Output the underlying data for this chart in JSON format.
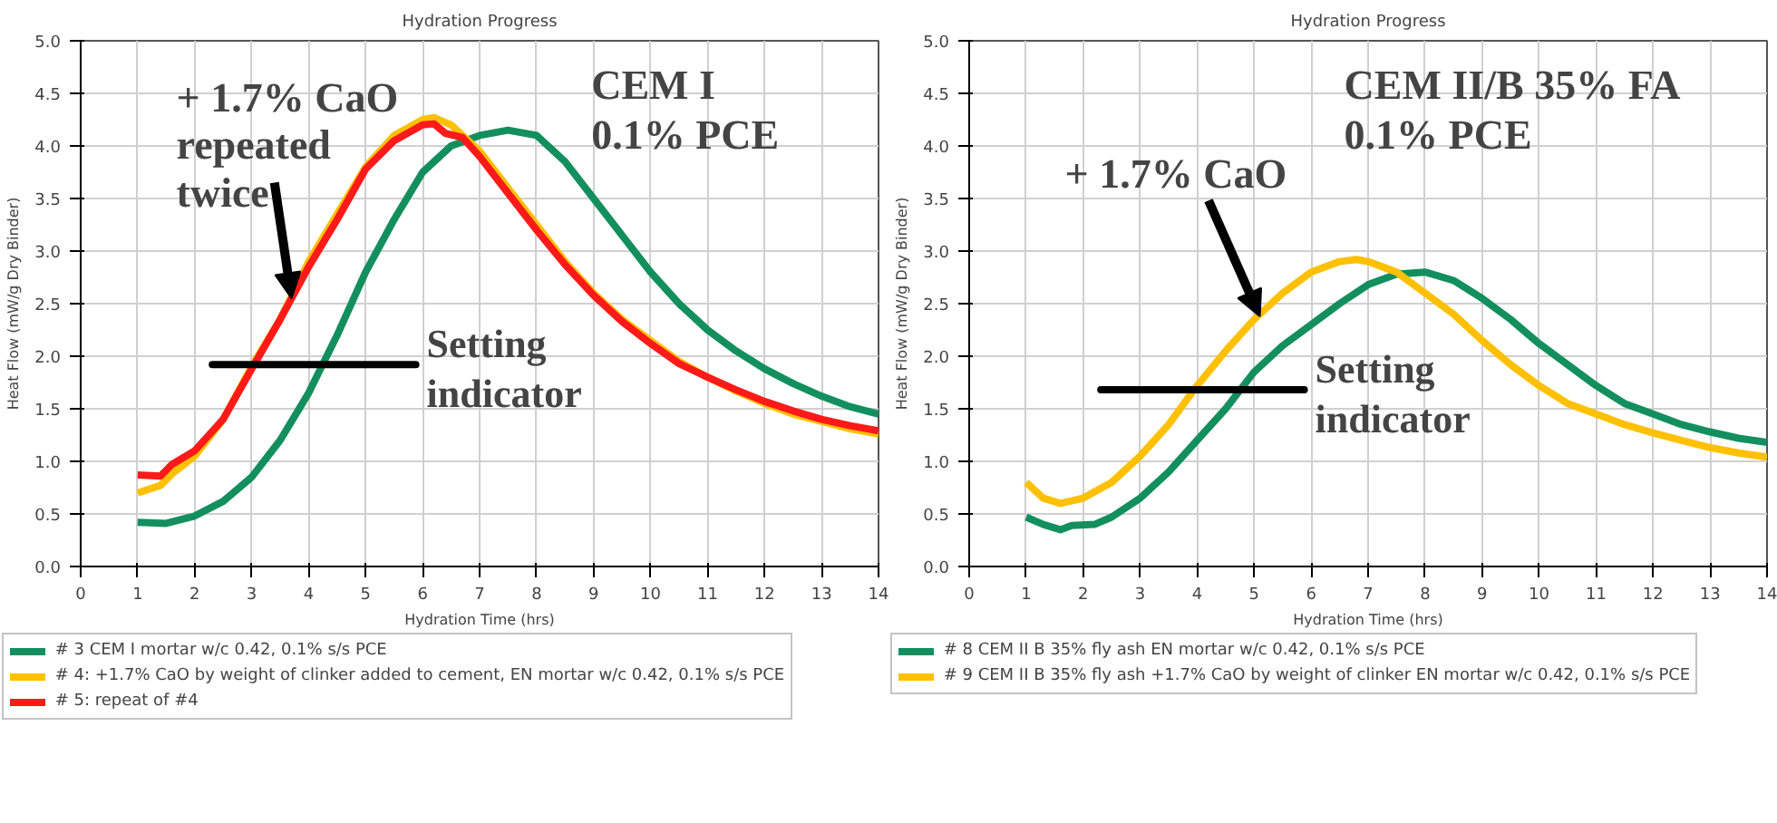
{
  "chart_data": [
    {
      "type": "line",
      "title": "Hydration Progress",
      "xlabel": "Hydration Time (hrs)",
      "ylabel": "Heat Flow (mW/g Dry Binder)",
      "xlim": [
        0,
        14
      ],
      "ylim": [
        0,
        5
      ],
      "xticks": [
        0,
        1,
        2,
        3,
        4,
        5,
        6,
        7,
        8,
        9,
        10,
        11,
        12,
        13,
        14
      ],
      "yticks": [
        {
          "value": 0,
          "label": "0.0"
        },
        {
          "value": 0.5,
          "label": "0.5"
        },
        {
          "value": 1,
          "label": "1.0"
        },
        {
          "value": 1.5,
          "label": "1.5"
        },
        {
          "value": 2,
          "label": "2.0"
        },
        {
          "value": 2.5,
          "label": "2.5"
        },
        {
          "value": 3,
          "label": "3.0"
        },
        {
          "value": 3.5,
          "label": "3.5"
        },
        {
          "value": 4,
          "label": "4.0"
        },
        {
          "value": 4.5,
          "label": "4.5"
        },
        {
          "value": 5,
          "label": "5.0"
        }
      ],
      "grid": true,
      "legend": "bottom",
      "x": [
        1,
        1.5,
        2,
        2.5,
        3,
        3.5,
        4,
        4.5,
        5,
        5.5,
        6,
        6.5,
        7,
        7.5,
        8,
        8.5,
        9,
        9.5,
        10,
        10.5,
        11,
        11.5,
        12,
        12.5,
        13,
        13.5,
        14
      ],
      "series": [
        {
          "name": "# 3 CEM I mortar w/c 0.42, 0.1% s/s PCE",
          "color": "#138f5e",
          "values": [
            0.42,
            0.41,
            0.48,
            0.62,
            0.85,
            1.2,
            1.65,
            2.2,
            2.8,
            3.3,
            3.75,
            4.0,
            4.1,
            4.15,
            4.1,
            3.85,
            3.5,
            3.15,
            2.8,
            2.5,
            2.25,
            2.05,
            1.88,
            1.74,
            1.62,
            1.52,
            1.45
          ]
        },
        {
          "name": "# 4: +1.7% CaO by weight of clinker added to cement, EN mortar w/c 0.42, 0.1% s/s PCE",
          "color": "#ffc000",
          "x": [
            1,
            1.4,
            1.6,
            2,
            2.5,
            3,
            3.5,
            4,
            4.5,
            5,
            5.5,
            6,
            6.2,
            6.5,
            7,
            7.5,
            8,
            8.5,
            9,
            9.5,
            10,
            10.5,
            11,
            11.5,
            12,
            12.5,
            13,
            13.5,
            14
          ],
          "values": [
            0.7,
            0.77,
            0.88,
            1.05,
            1.4,
            1.9,
            2.35,
            2.9,
            3.35,
            3.8,
            4.1,
            4.25,
            4.27,
            4.2,
            3.95,
            3.6,
            3.25,
            2.9,
            2.6,
            2.35,
            2.15,
            1.95,
            1.8,
            1.67,
            1.55,
            1.45,
            1.38,
            1.31,
            1.26
          ]
        },
        {
          "name": "# 5: repeat of #4",
          "color": "#ff1a1a",
          "x": [
            1,
            1.4,
            1.6,
            2,
            2.5,
            3,
            3.5,
            4,
            4.5,
            5,
            5.5,
            6,
            6.2,
            6.4,
            6.7,
            7,
            7.5,
            8,
            8.5,
            9,
            9.5,
            10,
            10.5,
            11,
            11.5,
            12,
            12.5,
            13,
            13.5,
            14
          ],
          "values": [
            0.87,
            0.86,
            0.97,
            1.1,
            1.4,
            1.88,
            2.35,
            2.85,
            3.3,
            3.78,
            4.05,
            4.2,
            4.21,
            4.12,
            4.08,
            3.9,
            3.55,
            3.2,
            2.87,
            2.58,
            2.33,
            2.12,
            1.93,
            1.8,
            1.68,
            1.57,
            1.48,
            1.4,
            1.34,
            1.29
          ]
        }
      ],
      "ref_lines": [
        {
          "axis": "y",
          "value": 1.92,
          "label": "Setting indicator",
          "color": "#000000"
        }
      ],
      "annotations": [
        {
          "text": "+ 1.7% CaO\nrepeated\ntwice",
          "x": 3.7,
          "y": 2.55
        },
        "CEM I\n0.1% PCE"
      ]
    },
    {
      "type": "line",
      "title": "Hydration Progress",
      "xlabel": "Hydration Time (hrs)",
      "ylabel": "Heat Flow (mW/g Dry Binder)",
      "xlim": [
        0,
        14
      ],
      "ylim": [
        0,
        5
      ],
      "xticks": [
        0,
        1,
        2,
        3,
        4,
        5,
        6,
        7,
        8,
        9,
        10,
        11,
        12,
        13,
        14
      ],
      "yticks": [
        {
          "value": 0,
          "label": "0.0"
        },
        {
          "value": 0.5,
          "label": "0.5"
        },
        {
          "value": 1,
          "label": "1.0"
        },
        {
          "value": 1.5,
          "label": "1.5"
        },
        {
          "value": 2,
          "label": "2.0"
        },
        {
          "value": 2.5,
          "label": "2.5"
        },
        {
          "value": 3,
          "label": "3.0"
        },
        {
          "value": 3.5,
          "label": "3.5"
        },
        {
          "value": 4,
          "label": "4.0"
        },
        {
          "value": 4.5,
          "label": "4.5"
        },
        {
          "value": 5,
          "label": "5.0"
        }
      ],
      "grid": true,
      "legend": "bottom",
      "x": [
        1,
        1.3,
        1.6,
        1.8,
        2.2,
        2.5,
        3,
        3.5,
        4,
        4.5,
        5,
        5.5,
        6,
        6.5,
        7,
        7.5,
        8,
        8.5,
        9,
        9.5,
        10,
        10.5,
        11,
        11.5,
        12,
        12.5,
        13,
        13.5,
        14
      ],
      "series": [
        {
          "name": "# 8 CEM II B 35% fly ash EN mortar w/c 0.42, 0.1% s/s PCE",
          "color": "#138f5e",
          "values": [
            0.47,
            0.4,
            0.35,
            0.39,
            0.4,
            0.47,
            0.65,
            0.9,
            1.2,
            1.5,
            1.85,
            2.1,
            2.3,
            2.5,
            2.68,
            2.78,
            2.8,
            2.72,
            2.55,
            2.35,
            2.12,
            1.92,
            1.72,
            1.55,
            1.45,
            1.35,
            1.28,
            1.22,
            1.18
          ]
        },
        {
          "name": "# 9 CEM II B 35% fly ash +1.7% CaO by weight of clinker EN mortar w/c 0.42, 0.1% s/s PCE",
          "color": "#ffc000",
          "x": [
            1,
            1.3,
            1.6,
            2,
            2.5,
            3,
            3.5,
            4,
            4.5,
            5,
            5.5,
            6,
            6.5,
            6.8,
            7,
            7.5,
            8,
            8.5,
            9,
            9.5,
            10,
            10.5,
            11,
            11.5,
            12,
            12.5,
            13,
            13.5,
            14
          ],
          "values": [
            0.8,
            0.65,
            0.6,
            0.65,
            0.8,
            1.05,
            1.35,
            1.72,
            2.05,
            2.35,
            2.6,
            2.8,
            2.9,
            2.92,
            2.9,
            2.8,
            2.6,
            2.4,
            2.15,
            1.92,
            1.72,
            1.55,
            1.45,
            1.35,
            1.27,
            1.2,
            1.13,
            1.08,
            1.04
          ]
        }
      ],
      "ref_lines": [
        {
          "axis": "y",
          "value": 1.68,
          "label": "Setting indicator",
          "color": "#000000"
        }
      ],
      "annotations": [
        {
          "text": "+ 1.7% CaO",
          "x": 5.1,
          "y": 2.38
        },
        "CEM II/B 35% FA\n0.1% PCE"
      ]
    }
  ]
}
